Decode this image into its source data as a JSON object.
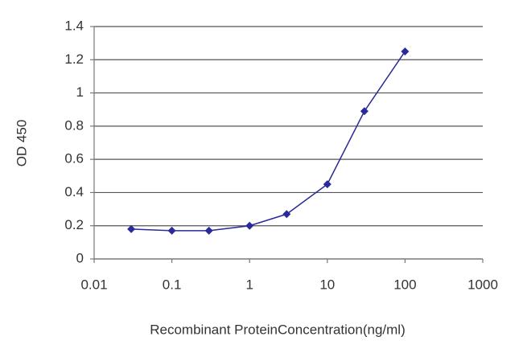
{
  "chart_data": {
    "type": "line",
    "x_label": "Recombinant ProteinConcentration(ng/ml)",
    "y_label": "OD 450",
    "x": [
      0.03,
      0.1,
      0.3,
      1,
      3,
      10,
      30,
      100
    ],
    "series": [
      {
        "color": "#2a2a9a",
        "values": [
          0.18,
          0.17,
          0.17,
          0.2,
          0.27,
          0.45,
          0.89,
          1.25
        ]
      }
    ],
    "xlim": [
      0.01,
      1000
    ],
    "xticks": [
      0.01,
      0.1,
      1,
      10,
      100,
      1000
    ],
    "xscale": "log",
    "ylim": [
      0,
      1.4
    ],
    "yticks": [
      0,
      0.2,
      0.4,
      0.6,
      0.8,
      1,
      1.2,
      1.4
    ],
    "grid": true
  }
}
